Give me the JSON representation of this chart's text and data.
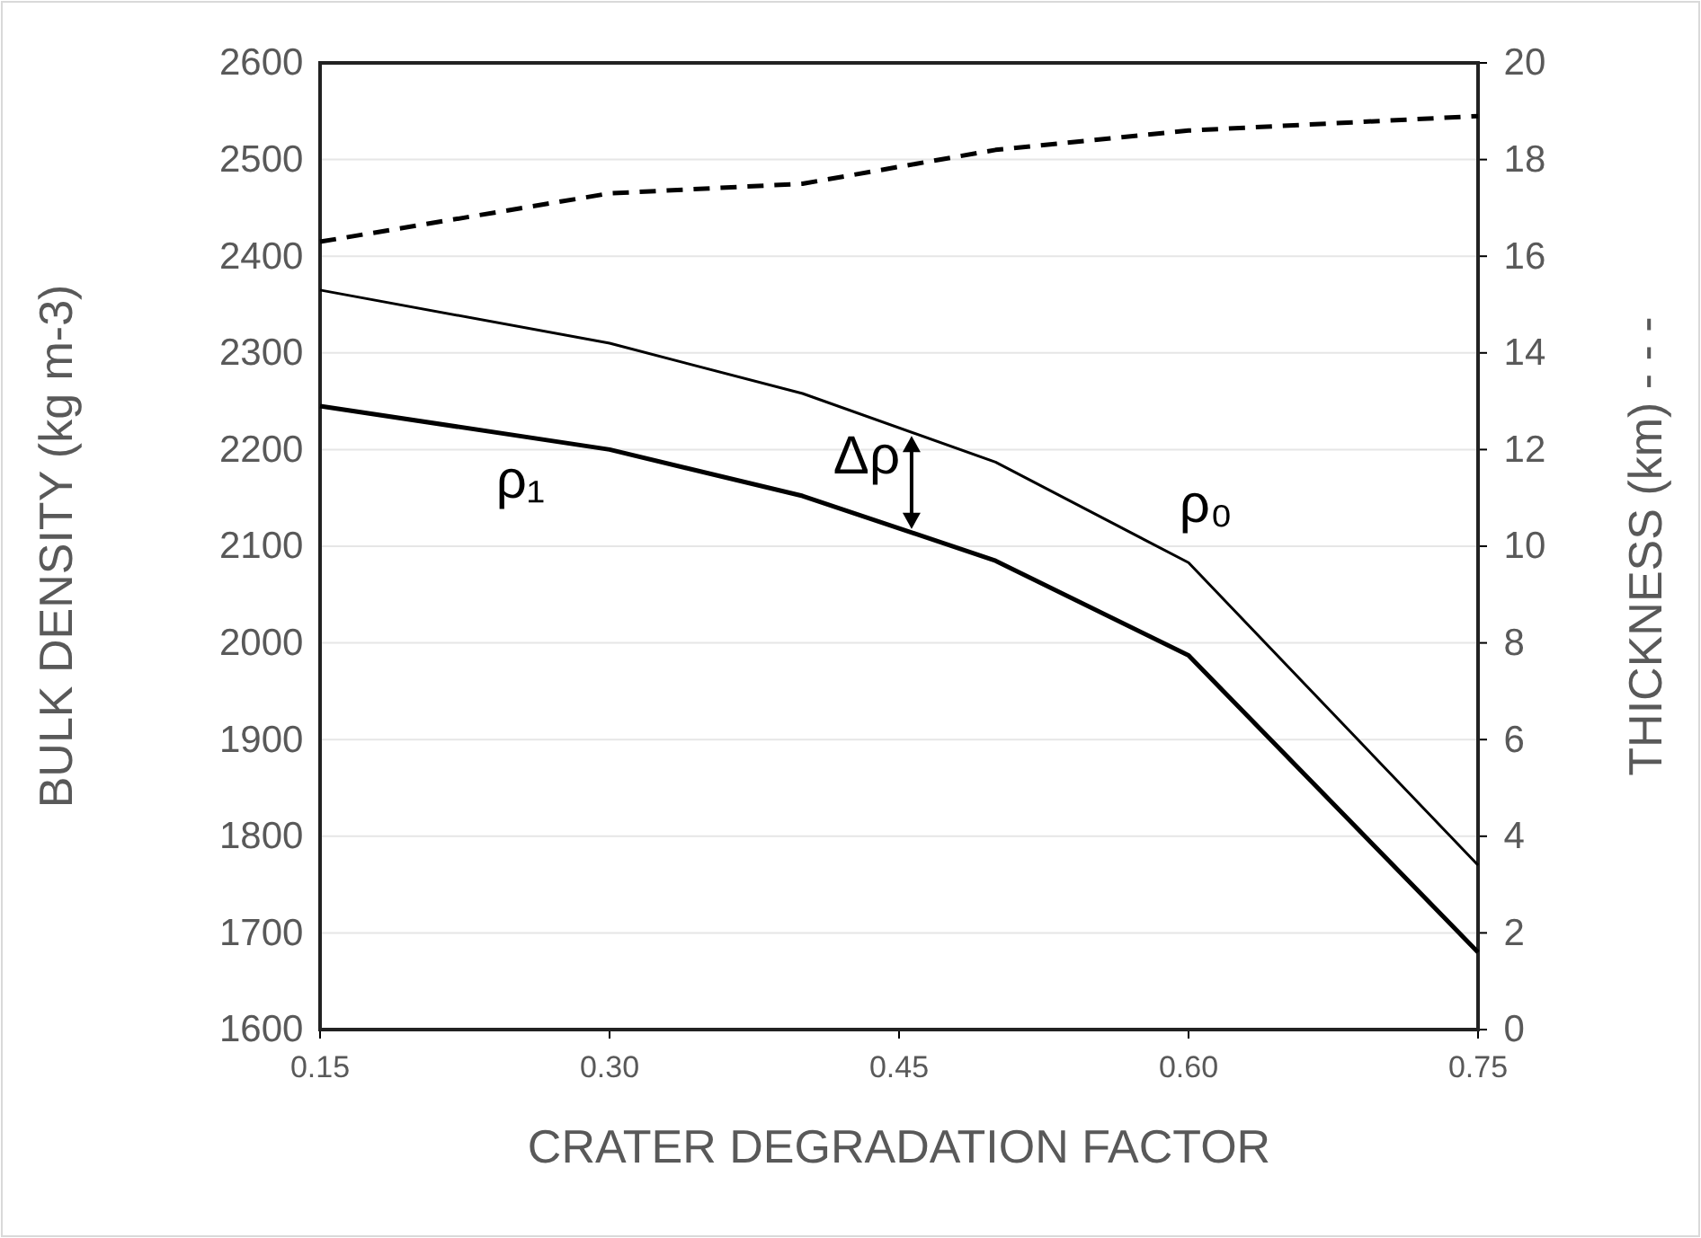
{
  "chart_data": {
    "type": "line",
    "xlabel": "CRATER DEGRADATION FACTOR",
    "ylabel": "BULK DENSITY (kg m-3)",
    "y2label": "THICKNESS (km) - - -",
    "x": [
      0.15,
      0.3,
      0.4,
      0.5,
      0.6,
      0.75
    ],
    "series": [
      {
        "color": "#000000",
        "values": [
          2365,
          2310,
          2258,
          2187,
          2083,
          1770
        ]
      },
      {
        "color": "#000000",
        "values": [
          2245,
          2200,
          2152,
          2085,
          1987,
          1680
        ]
      },
      {
        "color": "#000000",
        "values": [
          16.3,
          17.3,
          17.5,
          18.2,
          18.6,
          18.9
        ],
        "axis": "y2",
        "line_style": "dashed"
      }
    ],
    "xlim": [
      0.15,
      0.75
    ],
    "xticks": [
      0.15,
      {
        "value": 0.3,
        "label": "0.30"
      },
      0.45,
      {
        "value": 0.6,
        "label": "0.60"
      },
      0.75
    ],
    "ylim": [
      1600,
      2600
    ],
    "yticks": [
      1600,
      1700,
      1800,
      1900,
      2000,
      2100,
      2200,
      2300,
      2400,
      2500,
      2600
    ],
    "y2lim": [
      0,
      20
    ],
    "y2ticks": [
      0,
      2,
      4,
      6,
      8,
      10,
      12,
      14,
      16,
      18,
      20
    ],
    "grid": "y",
    "line_style": "solid",
    "marker": "none",
    "annotations": [
      "ρ₁",
      "Δρ",
      "ρ₀"
    ]
  }
}
